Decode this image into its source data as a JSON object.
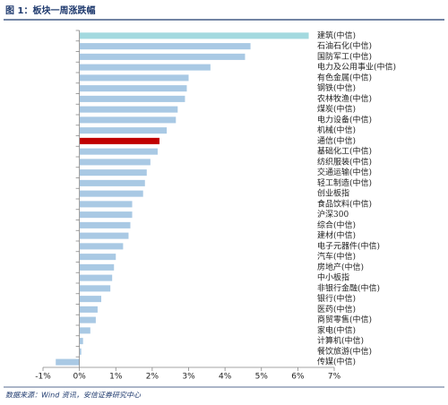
{
  "chart_data": {
    "type": "hbar",
    "title": "图 1：板块一周涨跌幅",
    "source": "数据来源：Wind 资讯，安信证券研究中心",
    "categories": [
      "建筑(中信)",
      "石油石化(中信)",
      "国防军工(中信)",
      "电力及公用事业(中信)",
      "有色金属(中信)",
      "钢铁(中信)",
      "农林牧渔(中信)",
      "煤炭(中信)",
      "电力设备(中信)",
      "机械(中信)",
      "通信(中信)",
      "基础化工(中信)",
      "纺织服装(中信)",
      "交通运输(中信)",
      "轻工制造(中信)",
      "创业板指",
      "食品饮料(中信)",
      "沪深300",
      "综合(中信)",
      "建材(中信)",
      "电子元器件(中信)",
      "汽车(中信)",
      "房地产(中信)",
      "中小板指",
      "非银行金融(中信)",
      "银行(中信)",
      "医药(中信)",
      "商贸零售(中信)",
      "家电(中信)",
      "计算机(中信)",
      "餐饮旅游(中信)",
      "传媒(中信)"
    ],
    "values": [
      6.3,
      4.7,
      4.55,
      3.6,
      3.0,
      2.95,
      2.9,
      2.7,
      2.65,
      2.4,
      2.2,
      2.15,
      1.95,
      1.85,
      1.8,
      1.75,
      1.45,
      1.45,
      1.4,
      1.35,
      1.2,
      1.0,
      0.95,
      0.9,
      0.85,
      0.6,
      0.5,
      0.45,
      0.3,
      0.1,
      0.05,
      -0.65
    ],
    "colors": [
      "#a3d9df",
      "#a9c9e4",
      "#a9c9e4",
      "#a9c9e4",
      "#a9c9e4",
      "#a9c9e4",
      "#a9c9e4",
      "#a9c9e4",
      "#a9c9e4",
      "#a9c9e4",
      "#c00000",
      "#a9c9e4",
      "#a9c9e4",
      "#a9c9e4",
      "#a9c9e4",
      "#a9c9e4",
      "#a9c9e4",
      "#a9c9e4",
      "#a9c9e4",
      "#a9c9e4",
      "#a9c9e4",
      "#a9c9e4",
      "#a9c9e4",
      "#a9c9e4",
      "#a9c9e4",
      "#a9c9e4",
      "#a9c9e4",
      "#a9c9e4",
      "#a9c9e4",
      "#a9c9e4",
      "#a9c9e4",
      "#a9c9e4"
    ],
    "xlim": [
      -1,
      7
    ],
    "xticks": [
      {
        "value": -1,
        "label": "-1%"
      },
      {
        "value": 0,
        "label": "0%"
      },
      {
        "value": 1,
        "label": "1%"
      },
      {
        "value": 2,
        "label": "2%"
      },
      {
        "value": 3,
        "label": "3%"
      },
      {
        "value": 4,
        "label": "4%"
      },
      {
        "value": 5,
        "label": "5%"
      },
      {
        "value": 6,
        "label": "6%"
      },
      {
        "value": 7,
        "label": "7%"
      }
    ]
  }
}
